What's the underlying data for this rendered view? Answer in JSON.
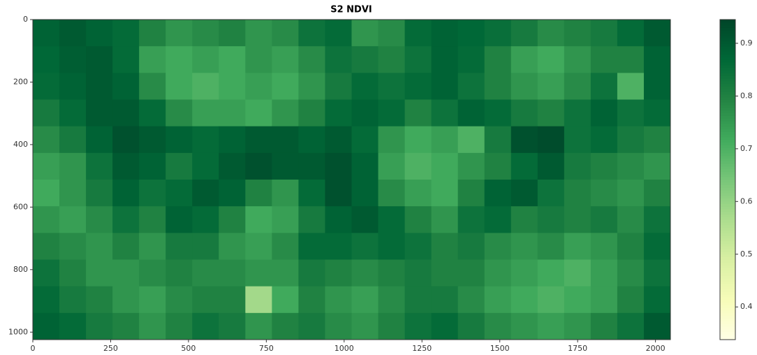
{
  "chart_data": {
    "type": "heatmap",
    "title": "S2 NDVI",
    "xlim": [
      0,
      2048
    ],
    "ylim": [
      1024,
      0
    ],
    "xticks": [
      0,
      250,
      500,
      750,
      1000,
      1250,
      1500,
      1750,
      2000
    ],
    "yticks": [
      0,
      200,
      400,
      600,
      800,
      1000
    ],
    "colormap_colors": [
      "#ffffe5",
      "#f7fcb9",
      "#d9f0a3",
      "#addd8e",
      "#78c679",
      "#41ab5d",
      "#238443",
      "#006837",
      "#004529"
    ],
    "clim": [
      0.338,
      0.945
    ],
    "cticks": [
      0.4,
      0.5,
      0.6,
      0.7,
      0.8,
      0.9
    ],
    "z": [
      [
        0.88,
        0.9,
        0.88,
        0.86,
        0.8,
        0.76,
        0.78,
        0.8,
        0.76,
        0.78,
        0.84,
        0.86,
        0.76,
        0.78,
        0.86,
        0.88,
        0.87,
        0.85,
        0.82,
        0.78,
        0.8,
        0.82,
        0.86,
        0.9
      ],
      [
        0.87,
        0.89,
        0.9,
        0.86,
        0.74,
        0.72,
        0.74,
        0.72,
        0.76,
        0.74,
        0.78,
        0.84,
        0.82,
        0.8,
        0.84,
        0.88,
        0.86,
        0.8,
        0.74,
        0.72,
        0.76,
        0.8,
        0.8,
        0.88
      ],
      [
        0.86,
        0.88,
        0.9,
        0.88,
        0.78,
        0.72,
        0.7,
        0.72,
        0.74,
        0.72,
        0.76,
        0.82,
        0.86,
        0.84,
        0.86,
        0.88,
        0.84,
        0.8,
        0.76,
        0.74,
        0.78,
        0.84,
        0.7,
        0.88
      ],
      [
        0.82,
        0.86,
        0.9,
        0.9,
        0.86,
        0.78,
        0.74,
        0.74,
        0.72,
        0.76,
        0.8,
        0.86,
        0.88,
        0.86,
        0.8,
        0.84,
        0.88,
        0.86,
        0.82,
        0.8,
        0.84,
        0.88,
        0.84,
        0.86
      ],
      [
        0.78,
        0.82,
        0.88,
        0.92,
        0.9,
        0.88,
        0.86,
        0.88,
        0.9,
        0.9,
        0.88,
        0.9,
        0.86,
        0.76,
        0.72,
        0.74,
        0.7,
        0.82,
        0.92,
        0.93,
        0.84,
        0.86,
        0.82,
        0.8
      ],
      [
        0.74,
        0.76,
        0.84,
        0.9,
        0.88,
        0.82,
        0.86,
        0.9,
        0.92,
        0.9,
        0.9,
        0.92,
        0.88,
        0.74,
        0.7,
        0.72,
        0.76,
        0.8,
        0.86,
        0.9,
        0.82,
        0.8,
        0.78,
        0.76
      ],
      [
        0.72,
        0.76,
        0.82,
        0.88,
        0.84,
        0.86,
        0.9,
        0.88,
        0.8,
        0.76,
        0.86,
        0.92,
        0.88,
        0.78,
        0.74,
        0.72,
        0.8,
        0.88,
        0.9,
        0.84,
        0.8,
        0.78,
        0.76,
        0.8
      ],
      [
        0.76,
        0.74,
        0.78,
        0.84,
        0.8,
        0.88,
        0.86,
        0.8,
        0.72,
        0.74,
        0.82,
        0.88,
        0.9,
        0.86,
        0.8,
        0.76,
        0.84,
        0.86,
        0.8,
        0.82,
        0.8,
        0.82,
        0.78,
        0.84
      ],
      [
        0.8,
        0.78,
        0.76,
        0.8,
        0.76,
        0.82,
        0.82,
        0.76,
        0.74,
        0.78,
        0.86,
        0.86,
        0.84,
        0.86,
        0.84,
        0.8,
        0.82,
        0.78,
        0.76,
        0.78,
        0.74,
        0.76,
        0.8,
        0.86
      ],
      [
        0.84,
        0.8,
        0.76,
        0.76,
        0.78,
        0.8,
        0.78,
        0.78,
        0.76,
        0.76,
        0.82,
        0.8,
        0.78,
        0.8,
        0.82,
        0.8,
        0.8,
        0.76,
        0.74,
        0.72,
        0.7,
        0.74,
        0.78,
        0.84
      ],
      [
        0.86,
        0.82,
        0.8,
        0.76,
        0.74,
        0.78,
        0.8,
        0.8,
        0.58,
        0.72,
        0.8,
        0.76,
        0.74,
        0.78,
        0.82,
        0.82,
        0.78,
        0.74,
        0.72,
        0.7,
        0.72,
        0.74,
        0.8,
        0.86
      ],
      [
        0.88,
        0.86,
        0.82,
        0.8,
        0.76,
        0.8,
        0.84,
        0.82,
        0.76,
        0.8,
        0.82,
        0.78,
        0.76,
        0.8,
        0.84,
        0.86,
        0.82,
        0.78,
        0.76,
        0.74,
        0.76,
        0.8,
        0.84,
        0.9
      ]
    ]
  }
}
